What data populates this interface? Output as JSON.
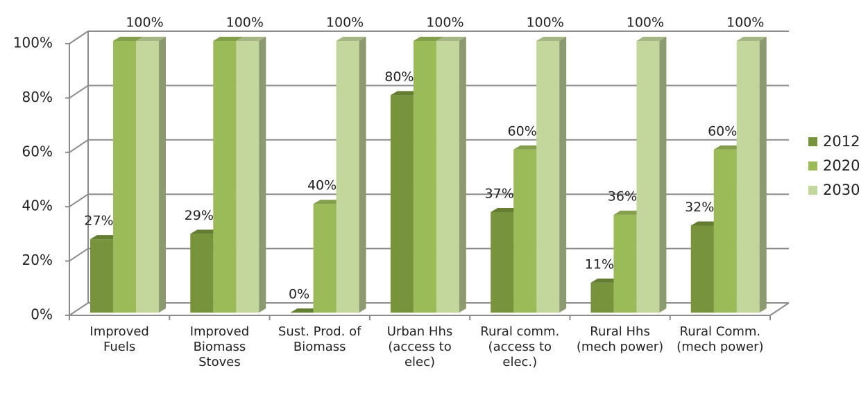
{
  "chart_data": {
    "type": "bar3d",
    "categories": [
      "Improved Fuels",
      "Improved Biomass Stoves",
      "Sust. Prod. of Biomass",
      "Urban Hhs (access to elec)",
      "Rural comm. (access to elec.)",
      "Rural Hhs (mech power)",
      "Rural Comm. (mech power)"
    ],
    "series": [
      {
        "name": "2012",
        "color": "#77933c",
        "values": [
          27,
          29,
          0,
          80,
          37,
          11,
          32
        ],
        "value_labels": [
          "27%",
          "29%",
          "0%",
          "80%",
          "37%",
          "11%",
          "32%"
        ]
      },
      {
        "name": "2020",
        "color": "#9bbb59",
        "values": [
          100,
          100,
          40,
          100,
          60,
          36,
          60
        ],
        "value_labels": [
          null,
          null,
          "40%",
          null,
          "60%",
          "36%",
          "60%"
        ]
      },
      {
        "name": "2030",
        "color": "#c3d69b",
        "values": [
          100,
          100,
          100,
          100,
          100,
          100,
          100
        ],
        "value_labels": [
          "100%",
          "100%",
          "100%",
          "100%",
          "100%",
          "100%",
          "100%"
        ]
      }
    ],
    "ylim": [
      0,
      100
    ],
    "yticks": [
      {
        "value": 0,
        "label": "0%"
      },
      {
        "value": 20,
        "label": "20%"
      },
      {
        "value": 40,
        "label": "40%"
      },
      {
        "value": 60,
        "label": "60%"
      },
      {
        "value": 80,
        "label": "80%"
      },
      {
        "value": 100,
        "label": "100%"
      }
    ],
    "grid": true,
    "legend": "right"
  }
}
